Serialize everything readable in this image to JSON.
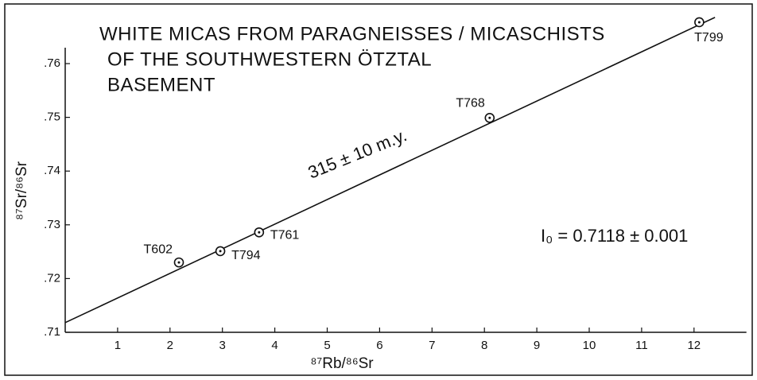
{
  "chart_data": {
    "type": "scatter",
    "title": [
      "WHITE MICAS FROM PARAGNEISSES / MICASCHISTS",
      "OF THE SOUTHWESTERN ÖTZTAL",
      "BASEMENT"
    ],
    "xlabel": "⁸⁷Rb/⁸⁶Sr",
    "ylabel": "⁸⁷Sr/⁸⁶Sr",
    "series": [
      {
        "labels": [
          "T602",
          "T794",
          "T761",
          "T768",
          "T799"
        ],
        "x": [
          2.17,
          2.96,
          3.7,
          8.1,
          12.1
        ],
        "values": [
          0.723,
          0.7251,
          0.7286,
          0.7499,
          0.7677
        ],
        "color": "#111111"
      }
    ],
    "fit_line": {
      "x": [
        0,
        12.4
      ],
      "y": [
        0.7118,
        0.7686
      ]
    },
    "annotations": [
      "315 ± 10 m.y.",
      "I₀ = 0.7118 ± 0.001"
    ],
    "xlim": [
      0,
      13
    ],
    "ylim": [
      0.71,
      0.77
    ],
    "xticks": [
      1,
      2,
      3,
      4,
      5,
      6,
      7,
      8,
      9,
      10,
      11,
      12
    ],
    "yticks": [
      {
        "value": 0.71,
        "label": ".71"
      },
      {
        "value": 0.72,
        "label": ".72"
      },
      {
        "value": 0.73,
        "label": ".73"
      },
      {
        "value": 0.74,
        "label": ".74"
      },
      {
        "value": 0.75,
        "label": ".75"
      },
      {
        "value": 0.76,
        "label": ".76"
      }
    ],
    "grid": false
  }
}
